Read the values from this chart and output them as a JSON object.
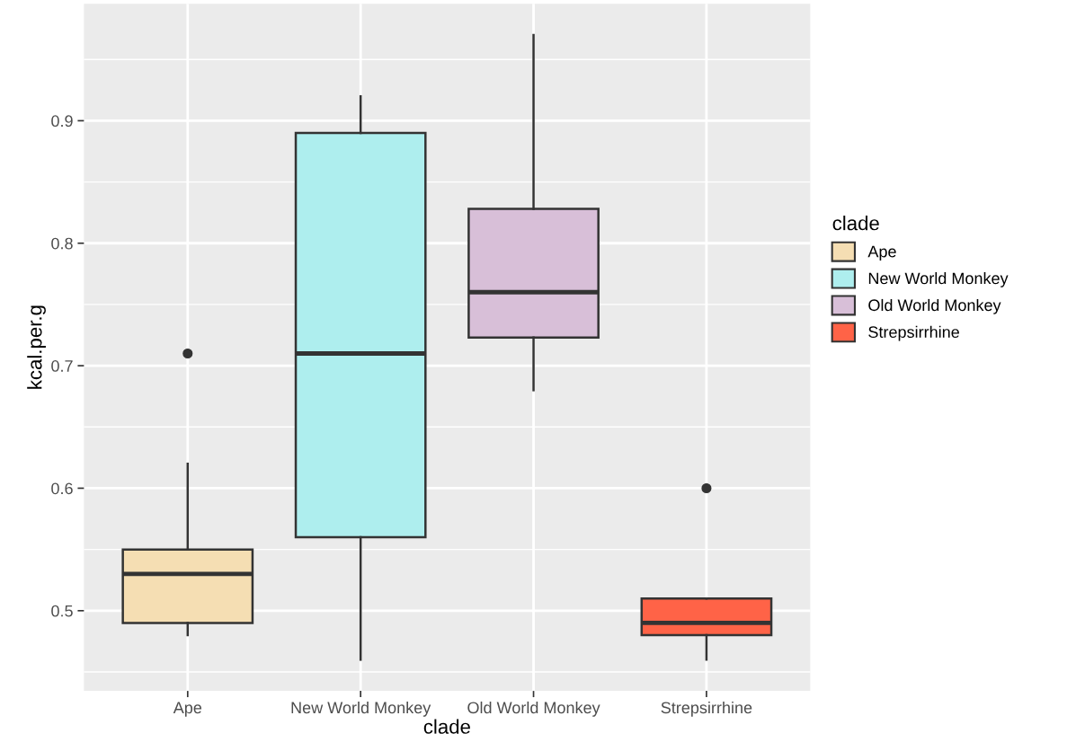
{
  "chart_data": {
    "type": "box",
    "xlabel": "clade",
    "ylabel": "kcal.per.g",
    "legend_title": "clade",
    "categories": [
      "Ape",
      "New World Monkey",
      "Old World Monkey",
      "Strepsirrhine"
    ],
    "series": [
      {
        "name": "Ape",
        "color": "#f5deb3",
        "boxes": [
          {
            "low": 0.48,
            "q1": 0.49,
            "median": 0.53,
            "q3": 0.55,
            "high": 0.62,
            "outliers": [
              0.71
            ]
          },
          null,
          null,
          null
        ]
      },
      {
        "name": "New World Monkey",
        "color": "#aeeeee",
        "boxes": [
          null,
          {
            "low": 0.46,
            "q1": 0.56,
            "median": 0.71,
            "q3": 0.89,
            "high": 0.92
          },
          null,
          null
        ]
      },
      {
        "name": "Old World Monkey",
        "color": "#d8bfd8",
        "boxes": [
          null,
          null,
          {
            "low": 0.68,
            "q1": 0.723,
            "median": 0.76,
            "q3": 0.828,
            "high": 0.97
          },
          null
        ]
      },
      {
        "name": "Strepsirrhine",
        "color": "#ff6347",
        "boxes": [
          null,
          null,
          null,
          {
            "low": 0.46,
            "q1": 0.48,
            "median": 0.49,
            "q3": 0.51,
            "high": 0.51,
            "outliers": [
              0.6
            ]
          }
        ]
      }
    ],
    "ylim": [
      0.4345,
      0.9955
    ],
    "yticks": [
      {
        "value": 0.45,
        "label": null
      },
      0.5,
      {
        "value": 0.55,
        "label": null
      },
      0.6,
      {
        "value": 0.65,
        "label": null
      },
      0.7,
      {
        "value": 0.75,
        "label": null
      },
      0.8,
      {
        "value": 0.85,
        "label": null
      },
      0.9,
      {
        "value": 0.95,
        "label": null
      }
    ],
    "grid": true,
    "legend": "right"
  }
}
